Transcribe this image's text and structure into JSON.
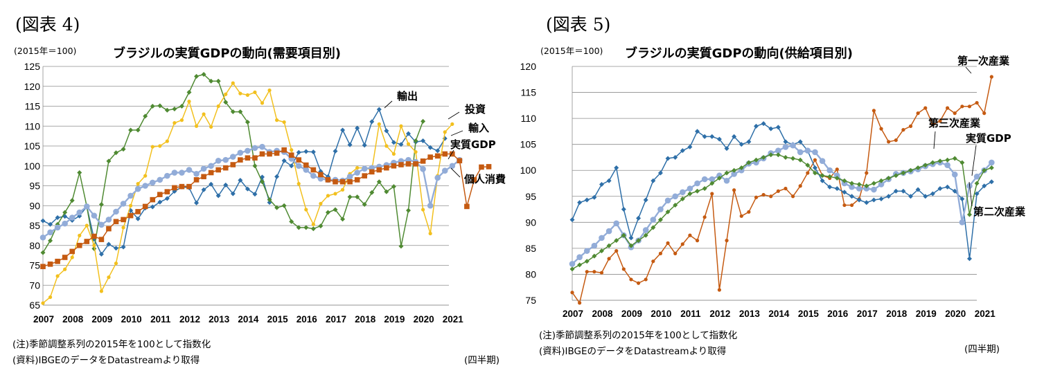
{
  "chart_data": [
    {
      "type": "line",
      "figure_label": "(図表 4)",
      "base_label": "(2015年＝100)",
      "title": "ブラジルの実質GDPの動向(需要項目別)",
      "note": "(注)季節調整系列の2015年を100として指数化",
      "source": "(資料)IBGEのデータをDatastreamより取得",
      "period_unit": "(四半期)",
      "ylim": [
        65,
        125
      ],
      "yticks": [
        65,
        70,
        75,
        80,
        85,
        90,
        95,
        100,
        105,
        110,
        115,
        120,
        125
      ],
      "x_start": "2007Q1",
      "year_labels": [
        "2007",
        "2008",
        "2009",
        "2010",
        "2011",
        "2012",
        "2013",
        "2014",
        "2015",
        "2016",
        "2017",
        "2018",
        "2019",
        "2020",
        "2021"
      ],
      "series": [
        {
          "name": "輸出",
          "color": "#2e6fa8",
          "marker": "diamond",
          "values": [
            86.2,
            85.3,
            87.0,
            87.3,
            86.3,
            87.4,
            89.8,
            81.6,
            77.8,
            80.3,
            79.3,
            79.6,
            88.8,
            86.7,
            89.4,
            89.7,
            90.9,
            91.8,
            93.6,
            94.7,
            94.5,
            90.7,
            94.0,
            95.4,
            92.5,
            95.2,
            93.0,
            96.4,
            94.2,
            92.9,
            97.2,
            90.8,
            97.3,
            101.3,
            100.0,
            103.4,
            103.6,
            103.5,
            98.6,
            97.3,
            103.7,
            109.0,
            105.3,
            109.5,
            105.2,
            111.1,
            114.2,
            108.8,
            105.9,
            105.4,
            108.1,
            106.0,
            106.3,
            104.6,
            103.8,
            106.9
          ]
        },
        {
          "name": "投資",
          "color": "#4f8a32",
          "marker": "diamond",
          "values": [
            78.2,
            81.2,
            85.3,
            88.3,
            91.3,
            98.3,
            89.8,
            79.2,
            90.3,
            101.2,
            103.3,
            104.2,
            109.0,
            109.0,
            112.5,
            115.0,
            115.1,
            114.0,
            114.3,
            115.0,
            118.5,
            122.5,
            123.0,
            121.3,
            121.3,
            116.0,
            113.6,
            113.6,
            111.0,
            100.0,
            96.0,
            91.5,
            89.5,
            90.0,
            86.0,
            84.5,
            84.5,
            84.2,
            84.9,
            88.3,
            89.0,
            86.6,
            92.2,
            92.2,
            90.3,
            93.3,
            96.0,
            93.5,
            94.8,
            79.8,
            88.8,
            106.3,
            111.2
          ]
        },
        {
          "name": "輸入",
          "color": "#f2c01e",
          "marker": "circle",
          "values": [
            65.5,
            67.0,
            72.3,
            74.0,
            77.0,
            82.5,
            85.0,
            80.0,
            68.5,
            72.0,
            75.5,
            84.5,
            90.0,
            95.5,
            97.5,
            104.8,
            105.0,
            106.2,
            110.8,
            111.5,
            116.2,
            110.0,
            113.0,
            109.8,
            115.0,
            118.0,
            120.8,
            118.2,
            117.8,
            118.5,
            115.8,
            119.0,
            111.5,
            111.0,
            104.0,
            95.5,
            89.0,
            85.3,
            90.5,
            92.5,
            93.0,
            94.0,
            98.0,
            99.5,
            99.5,
            99.0,
            110.5,
            105.0,
            103.0,
            110.0,
            105.5,
            103.5,
            89.0,
            83.0,
            97.5,
            108.5,
            110.5
          ]
        },
        {
          "name": "実質GDP",
          "color": "#92acd8",
          "marker": "circle",
          "values": [
            82.0,
            83.3,
            84.5,
            85.5,
            87.0,
            88.3,
            89.8,
            87.5,
            85.2,
            86.5,
            88.5,
            90.5,
            92.5,
            94.2,
            95.0,
            95.8,
            96.5,
            97.5,
            98.3,
            98.3,
            99.0,
            98.0,
            99.3,
            100.0,
            101.3,
            101.5,
            102.3,
            103.3,
            103.8,
            104.5,
            104.8,
            103.5,
            103.8,
            103.5,
            101.8,
            100.0,
            99.0,
            97.5,
            96.8,
            96.5,
            96.5,
            96.3,
            97.3,
            98.3,
            99.3,
            99.5,
            99.8,
            100.2,
            100.8,
            101.2,
            101.5,
            101.0,
            99.2,
            90.0,
            97.0,
            98.8,
            100.0,
            101.5
          ]
        },
        {
          "name": "個人消費",
          "color": "#c55a11",
          "marker": "square",
          "values": [
            74.7,
            75.3,
            76.0,
            77.0,
            78.5,
            80.0,
            81.0,
            82.3,
            81.5,
            84.2,
            86.0,
            86.5,
            87.5,
            88.5,
            89.8,
            91.5,
            92.8,
            93.5,
            94.5,
            94.8,
            94.8,
            96.5,
            97.3,
            98.3,
            99.0,
            99.5,
            100.3,
            101.5,
            102.0,
            102.0,
            103.0,
            103.0,
            103.2,
            104.0,
            102.7,
            101.5,
            100.2,
            99.0,
            97.8,
            96.5,
            96.0,
            96.0,
            96.0,
            96.5,
            97.5,
            98.5,
            99.0,
            99.5,
            100.0,
            100.3,
            100.5,
            100.5,
            101.2,
            102.2,
            102.5,
            103.0,
            103.0,
            101.3,
            89.8,
            96.5,
            99.7,
            99.8
          ]
        }
      ],
      "annotations": [
        "輸出",
        "投資",
        "輸入",
        "実質GDP",
        "個人消費"
      ]
    },
    {
      "type": "line",
      "figure_label": "(図表 5)",
      "base_label": "(2015年＝100)",
      "title": "ブラジルの実質GDPの動向(供給項目別)",
      "note": "(注)季節調整系列の2015年を100として指数化",
      "source": "(資料)IBGEのデータをDatastreamより取得",
      "period_unit": "(四半期)",
      "ylim": [
        75,
        120
      ],
      "yticks": [
        75,
        80,
        85,
        90,
        95,
        100,
        105,
        110,
        115,
        120
      ],
      "x_start": "2007Q1",
      "year_labels": [
        "2007",
        "2008",
        "2009",
        "2010",
        "2011",
        "2012",
        "2013",
        "2014",
        "2015",
        "2016",
        "2017",
        "2018",
        "2019",
        "2020",
        "2021"
      ],
      "series": [
        {
          "name": "第一次産業",
          "color": "#c55a11",
          "marker": "circle",
          "values": [
            76.5,
            74.5,
            80.5,
            80.5,
            80.3,
            83.0,
            84.5,
            81.0,
            79.0,
            78.3,
            79.0,
            82.5,
            84.0,
            86.0,
            84.0,
            85.8,
            87.5,
            86.5,
            91.0,
            95.5,
            77.0,
            86.5,
            96.2,
            91.2,
            92.0,
            94.8,
            95.3,
            95.0,
            96.0,
            96.5,
            95.0,
            97.0,
            99.5,
            102.0,
            99.0,
            98.5,
            100.2,
            93.3,
            93.3,
            94.5,
            99.5,
            111.5,
            108.0,
            105.5,
            105.8,
            107.8,
            108.5,
            111.0,
            112.0,
            108.8,
            109.5,
            112.0,
            111.0,
            112.3,
            112.3,
            113.0,
            111.0,
            118.0
          ]
        },
        {
          "name": "第二次産業",
          "color": "#2e6fa8",
          "marker": "diamond",
          "values": [
            90.5,
            93.8,
            94.3,
            94.8,
            97.3,
            98.0,
            100.5,
            92.5,
            87.0,
            90.8,
            94.3,
            98.0,
            99.5,
            102.3,
            102.5,
            103.8,
            104.5,
            107.5,
            106.5,
            106.5,
            106.0,
            104.2,
            106.5,
            105.0,
            105.5,
            108.5,
            109.0,
            108.0,
            108.3,
            105.5,
            105.0,
            105.5,
            103.8,
            100.5,
            98.0,
            96.8,
            96.5,
            95.8,
            95.0,
            94.3,
            93.8,
            94.3,
            94.5,
            95.0,
            96.0,
            96.0,
            95.0,
            96.3,
            95.0,
            95.5,
            96.5,
            96.8,
            96.0,
            94.5,
            83.0,
            95.5,
            97.0,
            97.8
          ]
        },
        {
          "name": "実質GDP",
          "color": "#92acd8",
          "marker": "circle",
          "values": [
            82.0,
            83.3,
            84.5,
            85.5,
            87.0,
            88.3,
            89.8,
            87.5,
            85.2,
            86.5,
            88.5,
            90.5,
            92.5,
            94.2,
            95.0,
            95.8,
            96.5,
            97.5,
            98.3,
            98.3,
            99.0,
            98.0,
            99.3,
            100.0,
            101.3,
            101.5,
            102.3,
            103.3,
            103.8,
            104.5,
            104.8,
            103.5,
            103.8,
            103.5,
            101.8,
            100.0,
            99.0,
            97.5,
            96.8,
            96.5,
            96.5,
            96.3,
            97.3,
            98.3,
            99.3,
            99.5,
            99.8,
            100.2,
            100.8,
            101.2,
            101.5,
            101.0,
            99.2,
            90.0,
            97.0,
            98.8,
            100.0,
            101.5
          ]
        },
        {
          "name": "第三次産業",
          "color": "#4f8a32",
          "marker": "diamond",
          "values": [
            81.0,
            81.8,
            82.5,
            83.5,
            84.5,
            85.5,
            86.5,
            87.5,
            85.5,
            86.5,
            87.5,
            89.0,
            90.5,
            92.0,
            93.3,
            94.5,
            95.5,
            96.0,
            96.5,
            97.5,
            98.5,
            99.5,
            100.0,
            100.5,
            101.5,
            102.0,
            102.5,
            103.0,
            103.0,
            102.5,
            102.3,
            102.0,
            101.0,
            99.5,
            99.0,
            98.8,
            98.5,
            98.0,
            97.5,
            97.3,
            97.0,
            97.5,
            98.0,
            98.5,
            99.0,
            99.5,
            100.0,
            100.5,
            101.0,
            101.5,
            101.8,
            102.0,
            102.3,
            101.5,
            91.5,
            97.5,
            100.0,
            100.5
          ]
        }
      ],
      "annotations": [
        "第一次産業",
        "第三次産業",
        "実質GDP",
        "第二次産業"
      ]
    }
  ]
}
